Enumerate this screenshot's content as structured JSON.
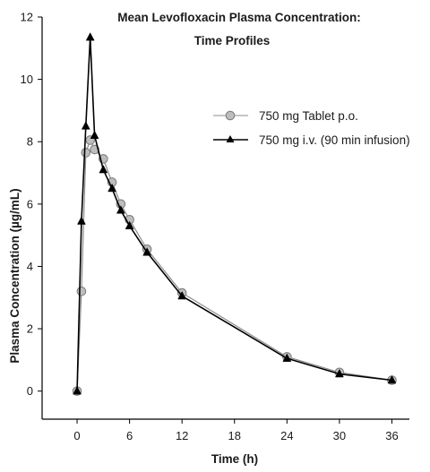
{
  "chart_data": {
    "type": "line",
    "title_line1": "Mean Levofloxacin Plasma Concentration:",
    "title_line2": "Time Profiles",
    "xlabel": "Time (h)",
    "ylabel": "Plasma Concentration (µg/mL)",
    "xticks": [
      0,
      6,
      12,
      18,
      24,
      30,
      36
    ],
    "xtick_labels": [
      "0",
      "6",
      "12",
      "18",
      "24",
      "30",
      "36"
    ],
    "yticks": [
      0,
      2,
      4,
      6,
      8,
      10,
      12
    ],
    "ytick_labels": [
      "0",
      "2",
      "4",
      "6",
      "8",
      "10",
      "12"
    ],
    "xlim": [
      -4,
      38
    ],
    "ylim": [
      -0.9,
      12
    ],
    "grid": false,
    "legend_position": "upper-right",
    "series": [
      {
        "name": "750 mg Tablet p.o.",
        "marker": "circle",
        "line_color": "#8c8c8c",
        "marker_fill": "#bdbdbd",
        "marker_stroke": "#7a7a7a",
        "x": [
          0,
          0.5,
          1,
          1.5,
          2,
          3,
          4,
          5,
          6,
          8,
          12,
          24,
          30,
          36
        ],
        "y": [
          0,
          3.2,
          7.65,
          8.05,
          7.75,
          7.45,
          6.7,
          6.0,
          5.5,
          4.55,
          3.15,
          1.1,
          0.6,
          0.35
        ]
      },
      {
        "name": "750 mg i.v. (90 min infusion)",
        "marker": "triangle",
        "line_color": "#000000",
        "marker_fill": "#000000",
        "marker_stroke": "#000000",
        "x": [
          0,
          0.5,
          1,
          1.5,
          2,
          3,
          4,
          5,
          6,
          8,
          12,
          24,
          30,
          36
        ],
        "y": [
          0,
          5.45,
          8.5,
          11.35,
          8.2,
          7.1,
          6.5,
          5.8,
          5.3,
          4.45,
          3.05,
          1.05,
          0.55,
          0.35
        ]
      }
    ]
  }
}
